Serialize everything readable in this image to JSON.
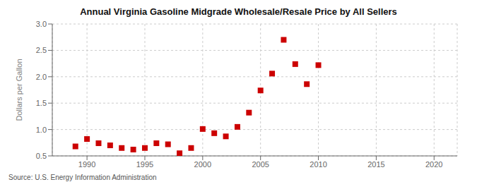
{
  "chart_data": {
    "type": "scatter",
    "title": "Annual Virginia Gasoline Midgrade Wholesale/Resale Price by All Sellers",
    "ylabel": "Dollars per Gallon",
    "source": "Source: U.S. Energy Information Administration",
    "x": [
      1989,
      1990,
      1991,
      1992,
      1993,
      1994,
      1995,
      1996,
      1997,
      1998,
      1999,
      2000,
      2001,
      2002,
      2003,
      2004,
      2005,
      2006,
      2007,
      2008,
      2009,
      2010
    ],
    "values": [
      0.68,
      0.82,
      0.74,
      0.7,
      0.65,
      0.62,
      0.65,
      0.74,
      0.72,
      0.55,
      0.65,
      1.01,
      0.93,
      0.87,
      1.05,
      1.32,
      1.74,
      2.06,
      2.7,
      2.24,
      1.86,
      2.22
    ],
    "color": "#cc0000",
    "marker": "square",
    "xlim": [
      1987,
      2022
    ],
    "xticks": [
      1990,
      1995,
      2000,
      2005,
      2010,
      2015,
      2020
    ],
    "ylim": [
      0.5,
      3.0
    ],
    "yticks": [
      0.5,
      {
        "value": 1.0,
        "label": "1.0"
      },
      1.5,
      {
        "value": 2.0,
        "label": "2.0"
      },
      2.5,
      {
        "value": 3.0,
        "label": "3.0"
      }
    ],
    "grid": true
  }
}
